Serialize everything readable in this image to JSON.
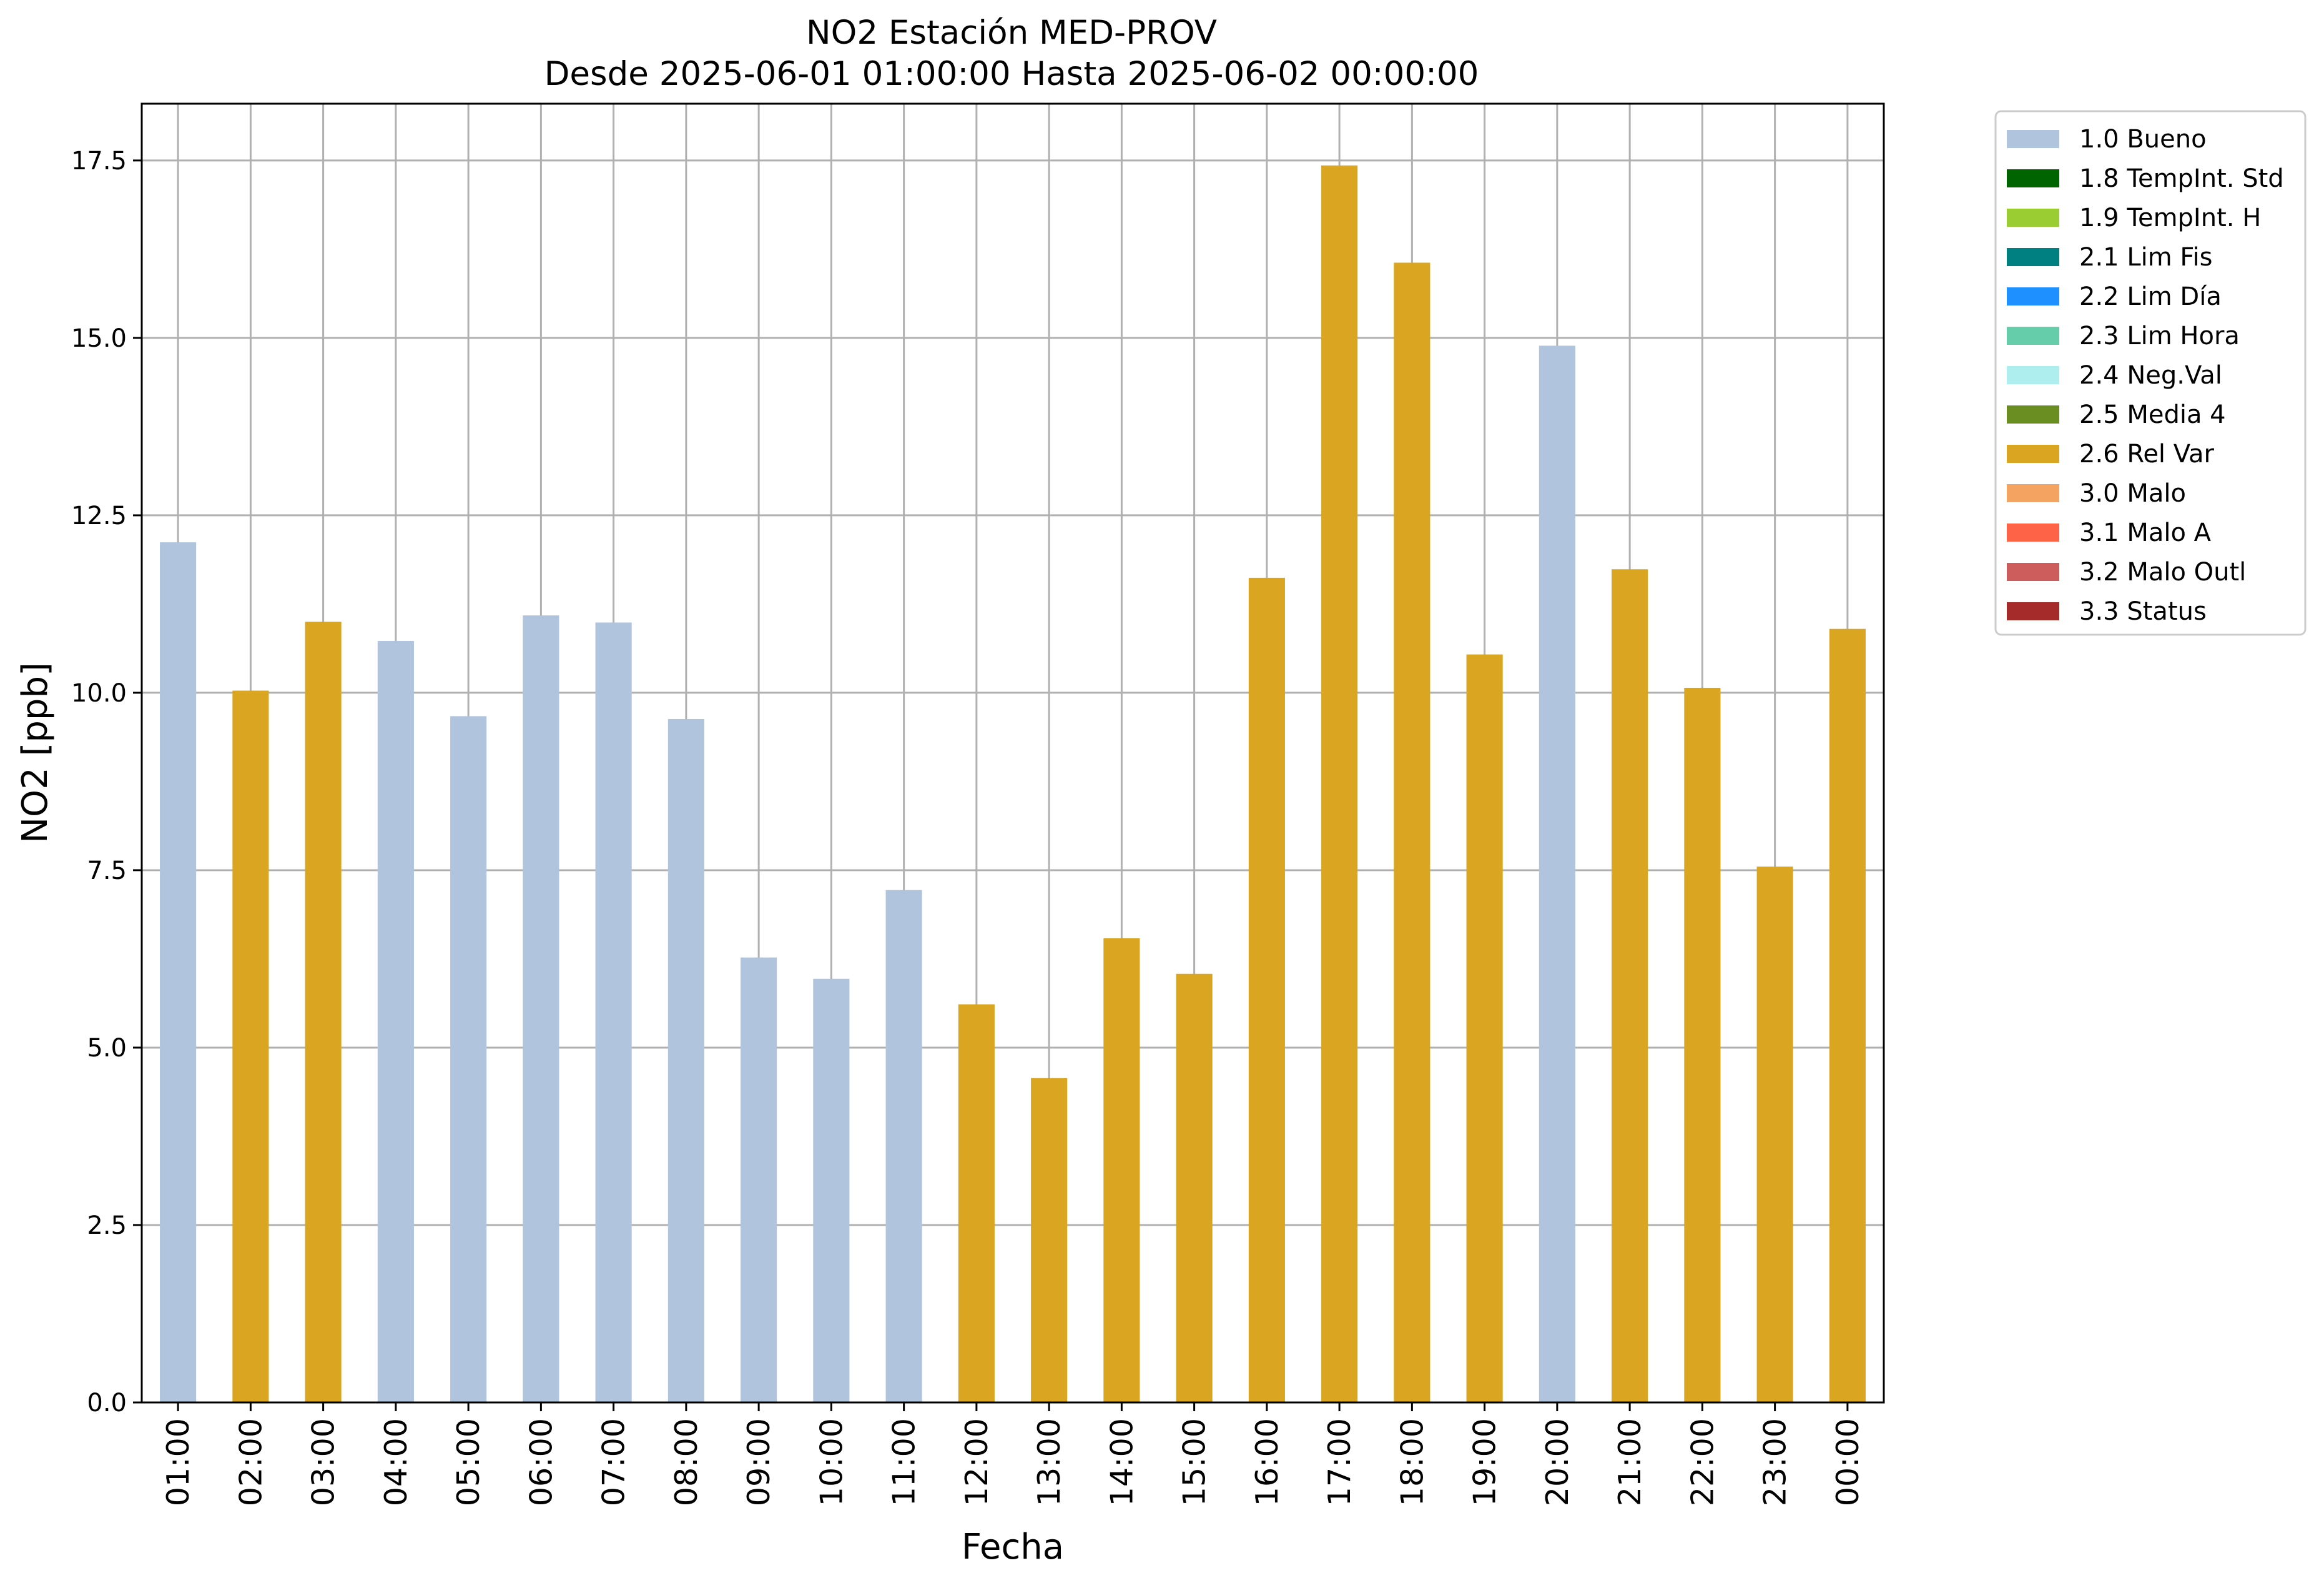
{
  "chart_data": {
    "type": "bar",
    "title": "NO2 Estación MED-PROV",
    "subtitle": "Desde 2025-06-01 01:00:00 Hasta 2025-06-02 00:00:00",
    "xlabel": "Fecha",
    "ylabel": "NO2 [ppb]",
    "ylim": [
      0,
      18.3
    ],
    "yticks": [
      "0.0",
      "2.5",
      "5.0",
      "7.5",
      "10.0",
      "12.5",
      "15.0",
      "17.5"
    ],
    "grid": true,
    "legend_position": "outside top-right",
    "categories": [
      "01:00",
      "02:00",
      "03:00",
      "04:00",
      "05:00",
      "06:00",
      "07:00",
      "08:00",
      "09:00",
      "10:00",
      "11:00",
      "12:00",
      "13:00",
      "14:00",
      "15:00",
      "16:00",
      "17:00",
      "18:00",
      "19:00",
      "20:00",
      "21:00",
      "22:00",
      "23:00",
      "00:00"
    ],
    "values": [
      12.12,
      10.03,
      11.0,
      10.73,
      9.67,
      11.09,
      10.99,
      9.63,
      6.27,
      5.97,
      7.22,
      5.61,
      4.57,
      6.54,
      6.04,
      11.62,
      17.43,
      16.06,
      10.54,
      14.89,
      11.74,
      10.07,
      7.55,
      10.9
    ],
    "bar_flags": [
      "1.0 Bueno",
      "2.6 Rel Var",
      "2.6 Rel Var",
      "1.0 Bueno",
      "1.0 Bueno",
      "1.0 Bueno",
      "1.0 Bueno",
      "1.0 Bueno",
      "1.0 Bueno",
      "1.0 Bueno",
      "1.0 Bueno",
      "2.6 Rel Var",
      "2.6 Rel Var",
      "2.6 Rel Var",
      "2.6 Rel Var",
      "2.6 Rel Var",
      "2.6 Rel Var",
      "2.6 Rel Var",
      "2.6 Rel Var",
      "1.0 Bueno",
      "2.6 Rel Var",
      "2.6 Rel Var",
      "2.6 Rel Var",
      "2.6 Rel Var"
    ],
    "legend": [
      {
        "label": "1.0 Bueno",
        "color": "#b0c4de"
      },
      {
        "label": "1.8 TempInt. Std",
        "color": "#006400"
      },
      {
        "label": "1.9 TempInt. H",
        "color": "#9acd32"
      },
      {
        "label": "2.1 Lim Fis",
        "color": "#008080"
      },
      {
        "label": "2.2 Lim Día",
        "color": "#1e90ff"
      },
      {
        "label": "2.3 Lim Hora",
        "color": "#66cdaa"
      },
      {
        "label": "2.4 Neg.Val",
        "color": "#afeeee"
      },
      {
        "label": "2.5 Media 4",
        "color": "#6b8e23"
      },
      {
        "label": "2.6 Rel Var",
        "color": "#daa520"
      },
      {
        "label": "3.0 Malo",
        "color": "#f4a460"
      },
      {
        "label": "3.1 Malo A",
        "color": "#ff6347"
      },
      {
        "label": "3.2 Malo Outl",
        "color": "#cd5c5c"
      },
      {
        "label": "3.3 Status",
        "color": "#a52a2a"
      }
    ]
  }
}
